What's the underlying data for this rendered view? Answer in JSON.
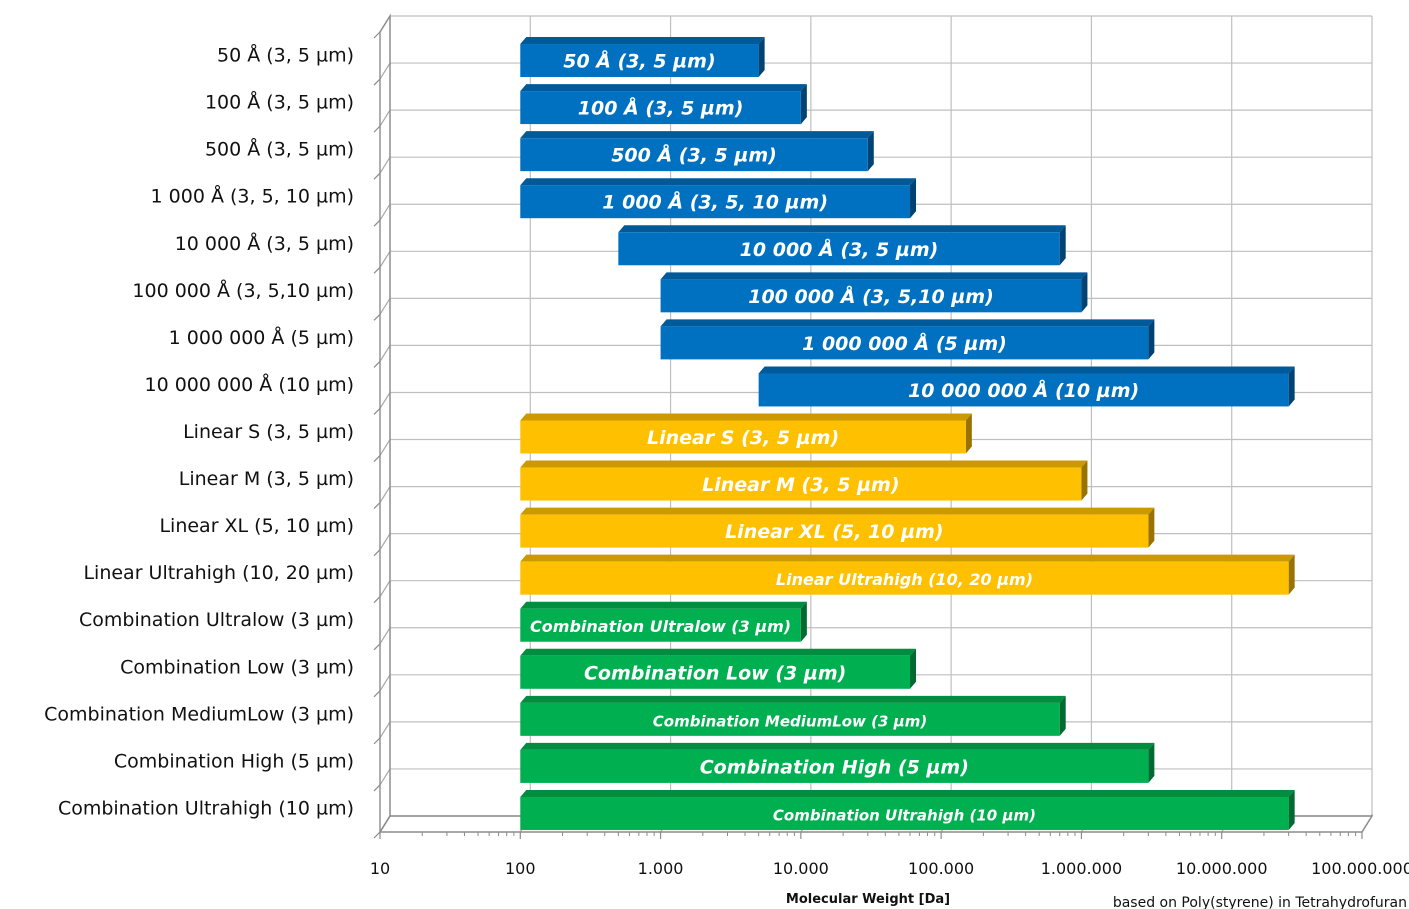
{
  "chart_data": {
    "type": "bar",
    "orientation": "horizontal-floating",
    "xscale": "log",
    "xlim": [
      10,
      100000000
    ],
    "xlabel": "Molecular Weight [Da]",
    "note": "based on Poly(styrene) in Tetrahydrofuran",
    "grid": true,
    "x_ticks": [
      {
        "value": 10,
        "label": "10"
      },
      {
        "value": 100,
        "label": "100"
      },
      {
        "value": 1000,
        "label": "1.000"
      },
      {
        "value": 10000,
        "label": "10.000"
      },
      {
        "value": 100000,
        "label": "100.000"
      },
      {
        "value": 1000000,
        "label": "1.000.000"
      },
      {
        "value": 10000000,
        "label": "10.000.000"
      },
      {
        "value": 100000000,
        "label": "100.000.000"
      }
    ],
    "colors": {
      "blue": "#0070c0",
      "gold": "#ffc000",
      "green": "#00b050"
    },
    "bars": [
      {
        "category": "50 Å (3, 5 µm)",
        "label": "50 Å (3, 5 µm)",
        "start": 100,
        "end": 5000,
        "color": "#0070c0"
      },
      {
        "category": "100 Å (3, 5 µm)",
        "label": "100 Å (3, 5 µm)",
        "start": 100,
        "end": 10000,
        "color": "#0070c0"
      },
      {
        "category": "500 Å (3, 5 µm)",
        "label": "500 Å (3, 5 µm)",
        "start": 100,
        "end": 30000,
        "color": "#0070c0"
      },
      {
        "category": "1 000 Å (3, 5, 10 µm)",
        "label": "1 000 Å (3, 5, 10 µm)",
        "start": 100,
        "end": 60000,
        "color": "#0070c0"
      },
      {
        "category": "10 000 Å (3, 5  µm)",
        "label": "10 000 Å (3, 5  µm)",
        "start": 500,
        "end": 700000,
        "color": "#0070c0"
      },
      {
        "category": "100 000 Å (3, 5,10 µm)",
        "label": "100 000 Å (3, 5,10 µm)",
        "start": 1000,
        "end": 1000000,
        "color": "#0070c0"
      },
      {
        "category": "1 000 000 Å (5 µm)",
        "label": "1 000 000 Å (5 µm)",
        "start": 1000,
        "end": 3000000,
        "color": "#0070c0"
      },
      {
        "category": "10 000 000 Å (10 µm)",
        "label": "10 000 000 Å (10 µm)",
        "start": 5000,
        "end": 30000000,
        "color": "#0070c0"
      },
      {
        "category": "Linear S (3, 5  µm)",
        "label": "Linear S (3, 5  µm)",
        "start": 100,
        "end": 150000,
        "color": "#ffc000"
      },
      {
        "category": "Linear M (3, 5  µm)",
        "label": "Linear M (3, 5  µm)",
        "start": 100,
        "end": 1000000,
        "color": "#ffc000"
      },
      {
        "category": "Linear XL (5, 10 µm)",
        "label": "Linear XL (5, 10 µm)",
        "start": 100,
        "end": 3000000,
        "color": "#ffc000"
      },
      {
        "category": "Linear Ultrahigh (10, 20 µm)",
        "label": "Linear Ultrahigh (10, 20 µm)",
        "start": 100,
        "end": 30000000,
        "color": "#ffc000"
      },
      {
        "category": "Combination Ultralow (3 µm)",
        "label": "Combination Ultralow (3 µm)",
        "start": 100,
        "end": 10000,
        "color": "#00b050"
      },
      {
        "category": "Combination Low (3 µm)",
        "label": "Combination Low (3 µm)",
        "start": 100,
        "end": 60000,
        "color": "#00b050"
      },
      {
        "category": "Combination MediumLow (3 µm)",
        "label": "Combination  MediumLow (3 µm)",
        "start": 100,
        "end": 700000,
        "color": "#00b050"
      },
      {
        "category": "Combination High (5 µm)",
        "label": "Combination High (5 µm)",
        "start": 100,
        "end": 3000000,
        "color": "#00b050"
      },
      {
        "category": "Combination Ultrahigh (10 µm)",
        "label": "Combination Ultrahigh (10 µm)",
        "start": 100,
        "end": 30000000,
        "color": "#00b050"
      }
    ]
  }
}
